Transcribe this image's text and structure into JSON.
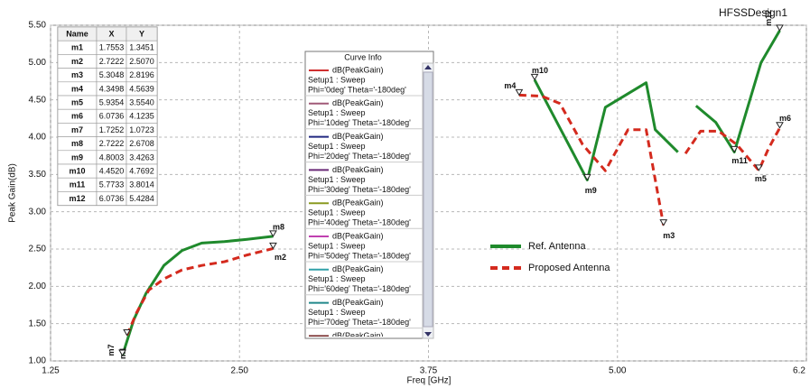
{
  "chart_data": {
    "type": "line",
    "title": "HFSSDesign1",
    "xlabel": "Freq [GHz]",
    "ylabel": "Peak Gain(dB)",
    "xlim": [
      1.25,
      6.25
    ],
    "ylim": [
      1.0,
      5.5
    ],
    "xticks": [
      {
        "value": 1.25,
        "label": "1.25"
      },
      {
        "value": 2.5,
        "label": "2.50"
      },
      {
        "value": 3.75,
        "label": "3.75"
      },
      {
        "value": 5.0,
        "label": "5.00"
      },
      {
        "value": 6.25,
        "label": "6.2"
      }
    ],
    "yticks": [
      {
        "value": 1.0,
        "label": "1.00"
      },
      {
        "value": 1.5,
        "label": "1.50"
      },
      {
        "value": 2.0,
        "label": "2.00"
      },
      {
        "value": 2.5,
        "label": "2.50"
      },
      {
        "value": 3.0,
        "label": "3.00"
      },
      {
        "value": 3.5,
        "label": "3.50"
      },
      {
        "value": 4.0,
        "label": "4.00"
      },
      {
        "value": 4.5,
        "label": "4.50"
      },
      {
        "value": 5.0,
        "label": "5.00"
      },
      {
        "value": 5.5,
        "label": "5.50"
      }
    ],
    "grid": true,
    "series": [
      {
        "name": "Ref. Antenna",
        "color": "#1f8a2c",
        "dashed": false,
        "x": [
          1.7252,
          1.8,
          1.88,
          2.0,
          2.12,
          2.25,
          2.4,
          2.55,
          2.7222,
          null,
          4.452,
          4.8003,
          4.92,
          5.19,
          5.25,
          5.4,
          null,
          5.52,
          5.65,
          5.7733,
          5.95,
          6.0736
        ],
        "values": [
          1.0723,
          1.55,
          1.9,
          2.28,
          2.48,
          2.58,
          2.6,
          2.63,
          2.6708,
          null,
          4.7692,
          3.4263,
          4.4,
          4.73,
          4.1,
          3.8,
          null,
          4.42,
          4.2,
          3.8014,
          5.0,
          5.4284
        ]
      },
      {
        "name": "Proposed Antenna",
        "color": "#d42a1e",
        "dashed": true,
        "x": [
          1.7553,
          1.82,
          1.9,
          2.0,
          2.12,
          2.25,
          2.4,
          2.55,
          2.7222,
          null,
          4.3498,
          4.5,
          4.62,
          4.77,
          4.92,
          5.07,
          5.19,
          5.3048,
          null,
          5.45,
          5.55,
          5.67,
          5.79,
          5.9354,
          6.0,
          6.0736
        ],
        "values": [
          1.3451,
          1.65,
          1.95,
          2.1,
          2.22,
          2.28,
          2.33,
          2.42,
          2.507,
          null,
          4.5639,
          4.55,
          4.45,
          3.9,
          3.55,
          4.1,
          4.1,
          2.8196,
          null,
          3.78,
          4.08,
          4.08,
          3.9,
          3.554,
          3.85,
          4.1235
        ]
      }
    ],
    "markers": {
      "columns": [
        "Name",
        "X",
        "Y"
      ],
      "rows": [
        [
          "m1",
          "1.7553",
          "1.3451"
        ],
        [
          "m2",
          "2.7222",
          "2.5070"
        ],
        [
          "m3",
          "5.3048",
          "2.8196"
        ],
        [
          "m4",
          "4.3498",
          "4.5639"
        ],
        [
          "m5",
          "5.9354",
          "3.5540"
        ],
        [
          "m6",
          "6.0736",
          "4.1235"
        ],
        [
          "m7",
          "1.7252",
          "1.0723"
        ],
        [
          "m8",
          "2.7222",
          "2.6708"
        ],
        [
          "m9",
          "4.8003",
          "3.4263"
        ],
        [
          "m10",
          "4.4520",
          "4.7692"
        ],
        [
          "m11",
          "5.7733",
          "3.8014"
        ],
        [
          "m12",
          "6.0736",
          "5.4284"
        ]
      ]
    },
    "curve_info": {
      "title": "Curve Info",
      "entries": [
        {
          "color": "#d03030",
          "lines": [
            "dB(PeakGain)",
            "Setup1 : Sweep",
            "Phi='0deg' Theta='-180deg'"
          ]
        },
        {
          "color": "#a05a78",
          "lines": [
            "dB(PeakGain)",
            "Setup1 : Sweep",
            "Phi='10deg' Theta='-180deg'"
          ]
        },
        {
          "color": "#202880",
          "lines": [
            "dB(PeakGain)",
            "Setup1 : Sweep",
            "Phi='20deg' Theta='-180deg'"
          ]
        },
        {
          "color": "#6a2a78",
          "lines": [
            "dB(PeakGain)",
            "Setup1 : Sweep",
            "Phi='30deg' Theta='-180deg'"
          ]
        },
        {
          "color": "#8a9a20",
          "lines": [
            "dB(PeakGain)",
            "Setup1 : Sweep",
            "Phi='40deg' Theta='-180deg'"
          ]
        },
        {
          "color": "#c040b0",
          "lines": [
            "dB(PeakGain)",
            "Setup1 : Sweep",
            "Phi='50deg' Theta='-180deg'"
          ]
        },
        {
          "color": "#30a0a8",
          "lines": [
            "dB(PeakGain)",
            "Setup1 : Sweep",
            "Phi='60deg' Theta='-180deg'"
          ]
        },
        {
          "color": "#20888a",
          "lines": [
            "dB(PeakGain)",
            "Setup1 : Sweep",
            "Phi='70deg' Theta='-180deg'"
          ]
        },
        {
          "color": "#7a3030",
          "lines": [
            "dB(PeakGain)"
          ]
        }
      ]
    }
  }
}
